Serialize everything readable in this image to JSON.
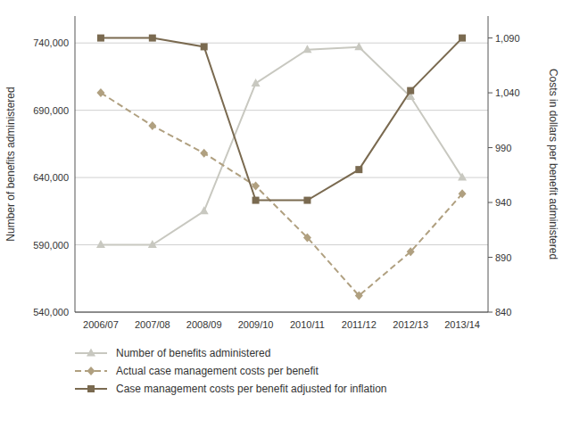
{
  "chart_data": {
    "type": "line",
    "categories": [
      "2006/07",
      "2007/08",
      "2008/09",
      "2009/10",
      "2010/11",
      "2011/12",
      "2012/13",
      "2013/14"
    ],
    "series": [
      {
        "name": "Number of benefits administered",
        "color": "#c8c8c0",
        "marker": "triangle",
        "line_style": "solid",
        "axis": "y",
        "values": [
          590000,
          590000,
          615000,
          710000,
          735000,
          737000,
          700000,
          640000
        ]
      },
      {
        "name": "Actual case management costs per benefit",
        "color": "#b0a080",
        "marker": "diamond",
        "line_style": "dashed",
        "axis": "y2",
        "values": [
          1040,
          1010,
          985,
          955,
          908,
          855,
          895,
          948
        ]
      },
      {
        "name": "Case management costs per benefit adjusted for inflation",
        "color": "#7a6a50",
        "marker": "square",
        "line_style": "solid",
        "axis": "y2",
        "values": [
          1090,
          1090,
          1082,
          942,
          942,
          970,
          1042,
          1090
        ]
      }
    ],
    "y_label": "Number of benefits administered",
    "y2_label": "Costs in dollars per benefit administered",
    "ylim": [
      540000,
      760000
    ],
    "yticks": [
      {
        "value": 540000,
        "label": "540,000"
      },
      {
        "value": 590000,
        "label": "590,000"
      },
      {
        "value": 640000,
        "label": "640,000"
      },
      {
        "value": 690000,
        "label": "690,000"
      },
      {
        "value": 740000,
        "label": "740,000"
      }
    ],
    "y2lim": [
      840,
      1110
    ],
    "y2ticks": [
      840,
      890,
      940,
      990,
      {
        "value": 1040,
        "label": "1,040"
      },
      {
        "value": 1090,
        "label": "1,090"
      }
    ],
    "grid": true,
    "legend": "bottom",
    "background_color": "#ffffff"
  }
}
